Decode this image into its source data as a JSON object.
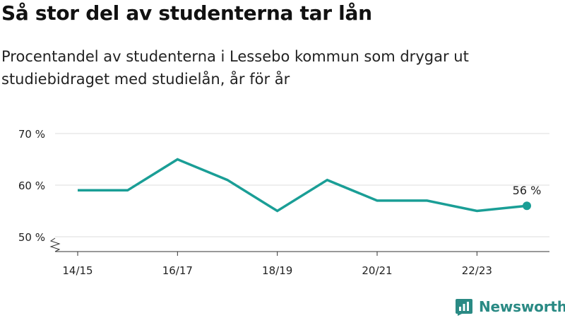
{
  "title": "Så stor del av studenterna tar lån",
  "subtitle": "Procentandel av studenterna i Lessebo kommun som drygar ut studiebidraget med studielån, år för år",
  "brand": {
    "name": "Newsworthy",
    "icon": "newsworthy-logo-icon",
    "color": "#2a8a84"
  },
  "chart_data": {
    "type": "line",
    "title": "Så stor del av studenterna tar lån",
    "subtitle": "Procentandel av studenterna i Lessebo kommun som drygar ut studiebidraget med studielån, år för år",
    "xlabel": "",
    "ylabel": "",
    "x": [
      "14/15",
      "15/16",
      "16/17",
      "17/18",
      "18/19",
      "19/20",
      "20/21",
      "21/22",
      "22/23",
      "23/24"
    ],
    "x_tick_labels": [
      "14/15",
      "16/17",
      "18/19",
      "20/21",
      "22/23"
    ],
    "series": [
      {
        "values": [
          59,
          59,
          65,
          61,
          55,
          61,
          57,
          57,
          55,
          56
        ],
        "color": "#1a9e96"
      }
    ],
    "y_ticks": [
      50,
      60,
      70
    ],
    "y_tick_suffix": " %",
    "ylim": [
      50,
      70
    ],
    "y_axis_break": true,
    "end_label": "56 %",
    "grid": true,
    "legend": "none",
    "colors": {
      "line": "#1a9e96",
      "grid": "#dcdcdc",
      "axis": "#333333",
      "text": "#222222"
    }
  }
}
